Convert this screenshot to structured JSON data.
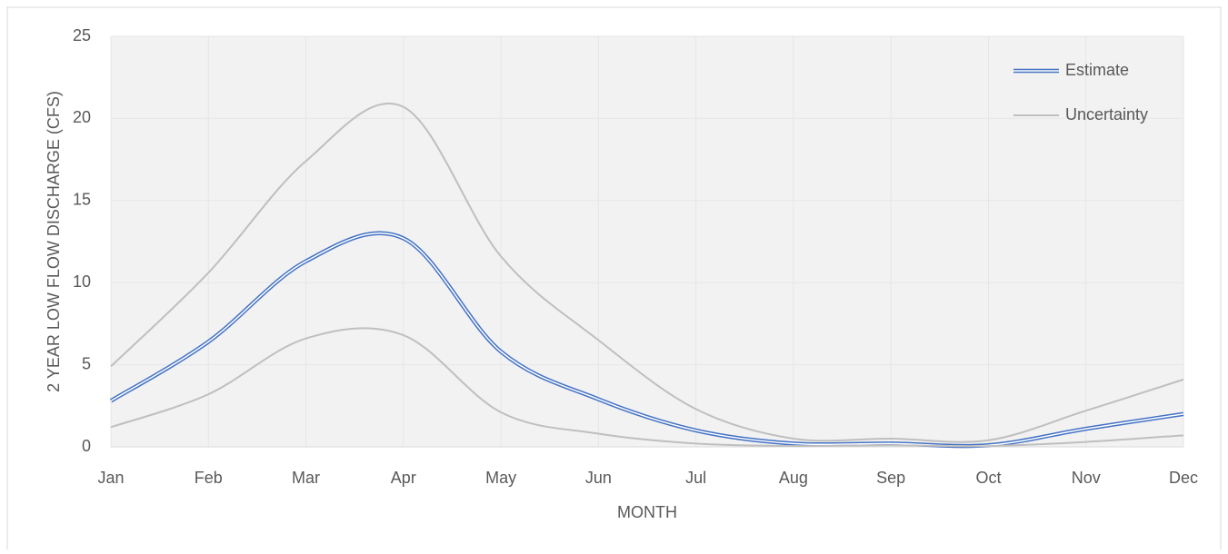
{
  "chart_data": {
    "type": "line",
    "x_label": "MONTH",
    "y_label": "2 YEAR LOW FLOW DISCHARGE (CFS)",
    "categories": [
      "Jan",
      "Feb",
      "Mar",
      "Apr",
      "May",
      "Jun",
      "Jul",
      "Aug",
      "Sep",
      "Oct",
      "Nov",
      "Dec"
    ],
    "series": [
      {
        "name": "Estimate",
        "color": "#4472c4",
        "values": [
          2.8,
          6.4,
          11.3,
          12.7,
          5.8,
          2.9,
          1.0,
          0.2,
          0.2,
          0.1,
          1.1,
          2.0
        ]
      },
      {
        "name": "Uncertainty",
        "color": "#bfbfbf",
        "upper": [
          4.9,
          10.6,
          17.4,
          20.7,
          11.6,
          6.5,
          2.3,
          0.5,
          0.5,
          0.4,
          2.2,
          4.1
        ],
        "lower": [
          1.2,
          3.2,
          6.6,
          6.8,
          2.1,
          0.8,
          0.2,
          0.05,
          0.1,
          0.05,
          0.3,
          0.7
        ]
      }
    ],
    "ylim": [
      0,
      25
    ],
    "yticks": [
      0,
      5,
      10,
      15,
      20,
      25
    ],
    "grid": true,
    "smooth": true,
    "legend": "upper right"
  }
}
